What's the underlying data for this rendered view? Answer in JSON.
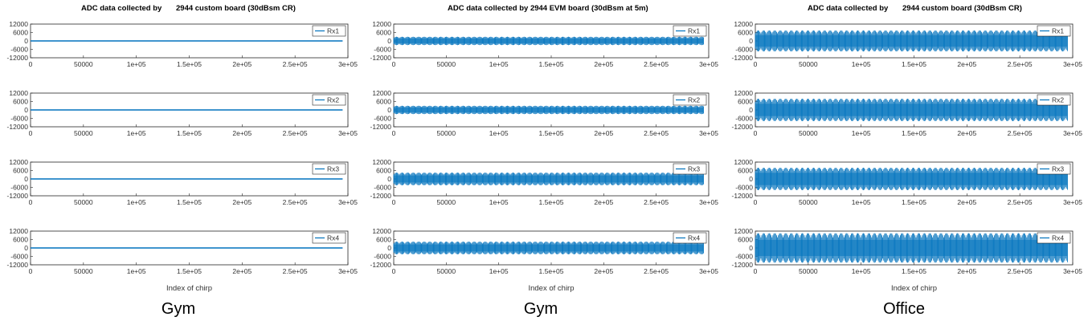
{
  "chart_data": [
    {
      "type": "line",
      "title_left": "ADC data collected by",
      "title_right": "2944 custom board (30dBsm CR)",
      "caption": "Gym",
      "xlabel": "Index of chirp",
      "xlim": [
        0,
        300000
      ],
      "ylim": [
        -12000,
        12000
      ],
      "xticks": [
        "0",
        "50000",
        "1e+05",
        "1.5e+05",
        "2e+05",
        "2.5e+05",
        "3e+05"
      ],
      "yticks": [
        "12000",
        "6000",
        "0",
        "-6000",
        "-12000"
      ],
      "color": "#0072BD",
      "x_range": [
        0,
        295000
      ],
      "series": [
        {
          "name": "Rx1",
          "min": -100,
          "max": 100
        },
        {
          "name": "Rx2",
          "min": -100,
          "max": 100
        },
        {
          "name": "Rx3",
          "min": -300,
          "max": 300
        },
        {
          "name": "Rx4",
          "min": -300,
          "max": 300
        }
      ]
    },
    {
      "type": "line",
      "title_left": "ADC data collected by 2944 EVM board (30dBsm at 5m)",
      "title_right": "",
      "caption": "Gym",
      "xlabel": "Index of chirp",
      "xlim": [
        0,
        300000
      ],
      "ylim": [
        -12000,
        12000
      ],
      "xticks": [
        "0",
        "50000",
        "1e+05",
        "1.5e+05",
        "2e+05",
        "2.5e+05",
        "3e+05"
      ],
      "yticks": [
        "12000",
        "6000",
        "0",
        "-6000",
        "-12000"
      ],
      "color": "#0072BD",
      "x_range": [
        0,
        295000
      ],
      "series": [
        {
          "name": "Rx1",
          "min": -3000,
          "max": 3000
        },
        {
          "name": "Rx2",
          "min": -3000,
          "max": 3000
        },
        {
          "name": "Rx3",
          "min": -4500,
          "max": 4500
        },
        {
          "name": "Rx4",
          "min": -4500,
          "max": 4500
        }
      ]
    },
    {
      "type": "line",
      "title_left": "ADC data collected by",
      "title_right": "2944 custom board (30dBsm CR)",
      "caption": "Office",
      "xlabel": "Index of chirp",
      "xlim": [
        0,
        300000
      ],
      "ylim": [
        -12000,
        12000
      ],
      "xticks": [
        "0",
        "50000",
        "1e+05",
        "1.5e+05",
        "2e+05",
        "2.5e+05",
        "3e+05"
      ],
      "yticks": [
        "12000",
        "6000",
        "0",
        "-6000",
        "-12000"
      ],
      "color": "#0072BD",
      "x_range": [
        0,
        295000
      ],
      "series": [
        {
          "name": "Rx1",
          "min": -7500,
          "max": 7500
        },
        {
          "name": "Rx2",
          "min": -8000,
          "max": 8000
        },
        {
          "name": "Rx3",
          "min": -8000,
          "max": 8000
        },
        {
          "name": "Rx4",
          "min": -10500,
          "max": 10500
        }
      ]
    }
  ]
}
